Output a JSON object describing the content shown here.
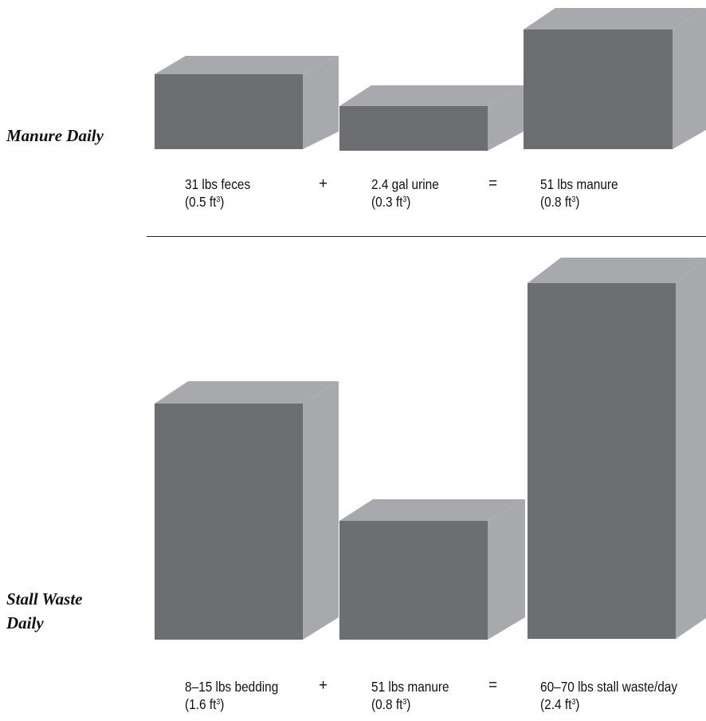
{
  "colors": {
    "front": "#6d6e71",
    "side_top": "#a7a9ac",
    "text": "#111111"
  },
  "rows": {
    "manure": {
      "title": "Manure Daily",
      "items": [
        {
          "label": "31 lbs feces",
          "sub_prefix": "(0.5 ft",
          "sup": "3",
          "sub_suffix": ")",
          "volume_ft3": 0.5
        },
        {
          "label": "2.4 gal urine",
          "sub_prefix": "(0.3 ft",
          "sup": "3",
          "sub_suffix": ")",
          "volume_ft3": 0.3
        },
        {
          "label": "51 lbs manure",
          "sub_prefix": "(0.8 ft",
          "sup": "3",
          "sub_suffix": ")",
          "volume_ft3": 0.8
        }
      ],
      "operators": [
        "+",
        "="
      ]
    },
    "stall": {
      "title_line1": "Stall Waste",
      "title_line2": "Daily",
      "items": [
        {
          "label": "8–15 lbs bedding",
          "sub_prefix": "(1.6 ft",
          "sup": "3",
          "sub_suffix": ")",
          "volume_ft3": 1.6
        },
        {
          "label": "51 lbs manure",
          "sub_prefix": "(0.8 ft",
          "sup": "3",
          "sub_suffix": ")",
          "volume_ft3": 0.8
        },
        {
          "label": "60–70 lbs stall waste/day",
          "sub_prefix": "(2.4 ft",
          "sup": "3",
          "sub_suffix": ")",
          "volume_ft3": 2.4
        }
      ],
      "operators": [
        "+",
        "="
      ]
    }
  }
}
